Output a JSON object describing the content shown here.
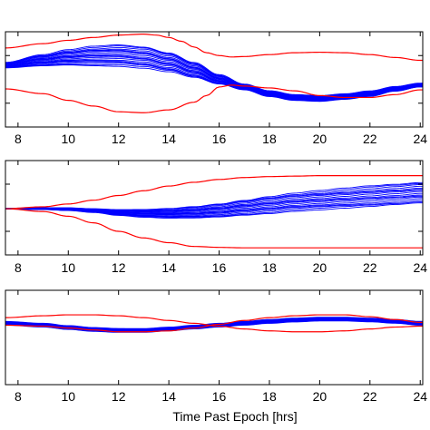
{
  "figure": {
    "xlabel": "Time Past Epoch [hrs]"
  },
  "colors": {
    "monte_carlo": "#0000ff",
    "bounds": "#ff0000"
  },
  "chart_data": [
    {
      "type": "line",
      "panel": "top",
      "xlim": [
        7.5,
        24.1
      ],
      "ylim": [
        0,
        100
      ],
      "xticks": [
        8,
        10,
        12,
        14,
        16,
        18,
        20,
        22,
        24
      ],
      "yticks": [
        25,
        75
      ],
      "xticklabels": [
        "8",
        "10",
        "12",
        "14",
        "16",
        "18",
        "20",
        "22",
        "24"
      ],
      "grid": false,
      "bounds": [
        {
          "color": "#ff0000",
          "x": [
            7.5,
            9,
            10,
            11,
            12,
            13,
            13.5,
            14,
            14.5,
            15,
            15.5,
            16,
            16.5,
            17,
            18,
            19,
            20,
            21,
            22,
            23,
            24
          ],
          "y": [
            83,
            87.5,
            91,
            94,
            96.5,
            97.5,
            96.5,
            94,
            90,
            84,
            78,
            75,
            73.5,
            74,
            76,
            78,
            78.5,
            78,
            76,
            73,
            70
          ]
        },
        {
          "color": "#ff0000",
          "x": [
            7.5,
            9,
            10,
            11,
            12,
            13,
            14,
            15,
            15.5,
            16,
            16.5,
            17,
            18,
            19,
            20,
            21,
            22,
            23,
            24
          ],
          "y": [
            40,
            35,
            28,
            22,
            16,
            15,
            18,
            26,
            33,
            42,
            44,
            43,
            41,
            38,
            33,
            31,
            31,
            34,
            39
          ]
        }
      ],
      "ensemble": {
        "color": "#0000ff",
        "x": [
          7.5,
          9,
          10,
          11,
          12,
          13,
          14,
          15,
          16,
          17,
          18,
          19,
          20,
          21,
          22,
          23,
          24
        ],
        "center": [
          65,
          70,
          73,
          74.5,
          75,
          73,
          68,
          60,
          50,
          42,
          35,
          31,
          30,
          32,
          35,
          40,
          44
        ],
        "spread": [
          3,
          6,
          8,
          10,
          11,
          11,
          10,
          8,
          5,
          3,
          3,
          3,
          3,
          3,
          3,
          2.5,
          2
        ],
        "count": 18
      }
    },
    {
      "type": "line",
      "panel": "middle",
      "xlim": [
        7.5,
        24.1
      ],
      "ylim": [
        0,
        100
      ],
      "xticks": [
        8,
        10,
        12,
        14,
        16,
        18,
        20,
        22,
        24
      ],
      "yticks": [
        25,
        75
      ],
      "xticklabels": [
        "8",
        "10",
        "12",
        "14",
        "16",
        "18",
        "20",
        "22",
        "24"
      ],
      "grid": false,
      "bounds": [
        {
          "color": "#ff0000",
          "x": [
            7.5,
            9,
            10,
            11,
            12,
            13,
            14,
            15,
            16,
            17,
            18,
            19,
            20,
            21,
            22,
            23,
            24
          ],
          "y": [
            49,
            51,
            54,
            58,
            63,
            68,
            73,
            77,
            80,
            82,
            83,
            83.5,
            84,
            84,
            84,
            84,
            84
          ]
        },
        {
          "color": "#ff0000",
          "x": [
            7.5,
            9,
            10,
            11,
            12,
            13,
            14,
            15,
            16,
            17,
            18,
            19,
            20,
            21,
            22,
            23,
            24
          ],
          "y": [
            49,
            46,
            41,
            34,
            25,
            18,
            13,
            9,
            8,
            7.5,
            7.5,
            7.5,
            7.5,
            7.5,
            7.5,
            7.5,
            7.5
          ]
        }
      ],
      "ensemble": {
        "color": "#0000ff",
        "x": [
          7.5,
          9,
          10,
          11,
          12,
          13,
          14,
          15,
          16,
          17,
          18,
          19,
          20,
          21,
          22,
          23,
          24
        ],
        "center": [
          49,
          49,
          48.5,
          47,
          45,
          44,
          44,
          45,
          47,
          50,
          53,
          56,
          58,
          60,
          62,
          64,
          66
        ],
        "spread": [
          0.5,
          1,
          1.5,
          2,
          3,
          4,
          5,
          6,
          7,
          8,
          9,
          9.5,
          10,
          10.5,
          11,
          11,
          11
        ],
        "count": 16
      }
    },
    {
      "type": "line",
      "panel": "bottom",
      "xlim": [
        7.5,
        24.1
      ],
      "ylim": [
        0,
        100
      ],
      "xticks": [
        8,
        10,
        12,
        14,
        16,
        18,
        20,
        22,
        24
      ],
      "yticks": [],
      "xticklabels": [
        "8",
        "10",
        "12",
        "14",
        "16",
        "18",
        "20",
        "22",
        "24"
      ],
      "grid": false,
      "bounds": [
        {
          "color": "#ff0000",
          "x": [
            7.5,
            9,
            10,
            11,
            12,
            13,
            14,
            15,
            16,
            17,
            18,
            19,
            20,
            21,
            22,
            23,
            24
          ],
          "y": [
            71,
            73,
            74,
            74,
            73,
            71,
            68,
            65,
            62,
            59,
            57,
            56,
            56,
            57,
            59,
            61,
            62
          ]
        },
        {
          "color": "#ff0000",
          "x": [
            7.5,
            9,
            10,
            11,
            12,
            13,
            14,
            15,
            16,
            17,
            18,
            19,
            20,
            21,
            22,
            23,
            24
          ],
          "y": [
            63,
            62,
            60,
            58,
            56,
            56,
            57,
            60,
            64,
            68,
            71,
            73,
            74,
            74,
            72,
            69,
            66
          ]
        }
      ],
      "ensemble": {
        "color": "#0000ff",
        "x": [
          7.5,
          9,
          10,
          11,
          12,
          13,
          14,
          15,
          16,
          17,
          18,
          19,
          20,
          21,
          22,
          23,
          24
        ],
        "center": [
          65,
          63,
          60.5,
          58.5,
          57.5,
          57.5,
          59,
          61,
          63,
          65,
          67,
          68.5,
          69.5,
          69.5,
          68.5,
          67,
          65
        ],
        "spread": [
          2,
          2,
          2,
          2,
          2,
          2,
          2,
          2,
          2,
          2,
          2,
          2,
          2,
          2,
          2,
          2,
          2
        ],
        "count": 14
      }
    }
  ]
}
